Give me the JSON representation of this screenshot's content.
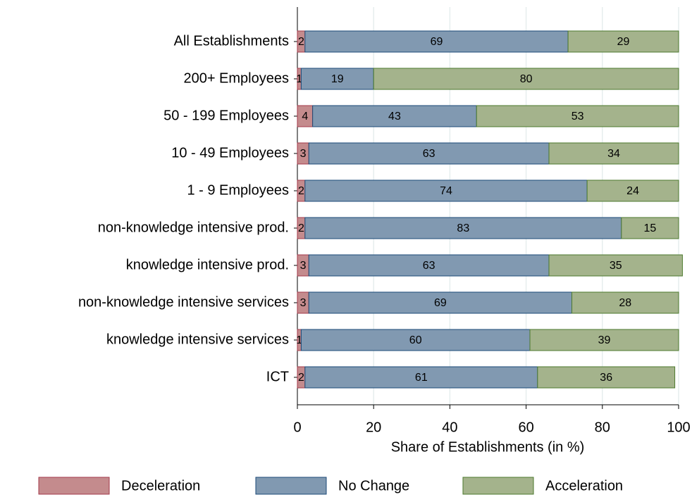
{
  "chart_data": {
    "type": "bar",
    "orientation": "horizontal",
    "stacked": true,
    "xlabel": "Share of Establishments (in %)",
    "categories": [
      "All Establishments",
      "200+ Employees",
      "50 - 199 Employees",
      "10 - 49 Employees",
      "1 - 9 Employees",
      "non-knowledge intensive prod.",
      "knowledge intensive prod.",
      "non-knowledge intensive services",
      "knowledge intensive services",
      "ICT"
    ],
    "series": [
      {
        "name": "Deceleration",
        "color": "#c48b8d",
        "stroke": "#a33a4a",
        "values": [
          2,
          1,
          4,
          3,
          2,
          2,
          3,
          3,
          1,
          2
        ]
      },
      {
        "name": "No Change",
        "color": "#8199b1",
        "stroke": "#1c4a78",
        "values": [
          69,
          19,
          43,
          63,
          74,
          83,
          63,
          69,
          60,
          61
        ]
      },
      {
        "name": "Acceleration",
        "color": "#a4b38c",
        "stroke": "#4d7a2e",
        "values": [
          29,
          80,
          53,
          34,
          24,
          15,
          35,
          28,
          39,
          36
        ]
      }
    ],
    "xlim": [
      0,
      100
    ],
    "xticks": [
      0,
      20,
      40,
      60,
      80,
      100
    ],
    "grid": true,
    "legend": "bottom"
  }
}
